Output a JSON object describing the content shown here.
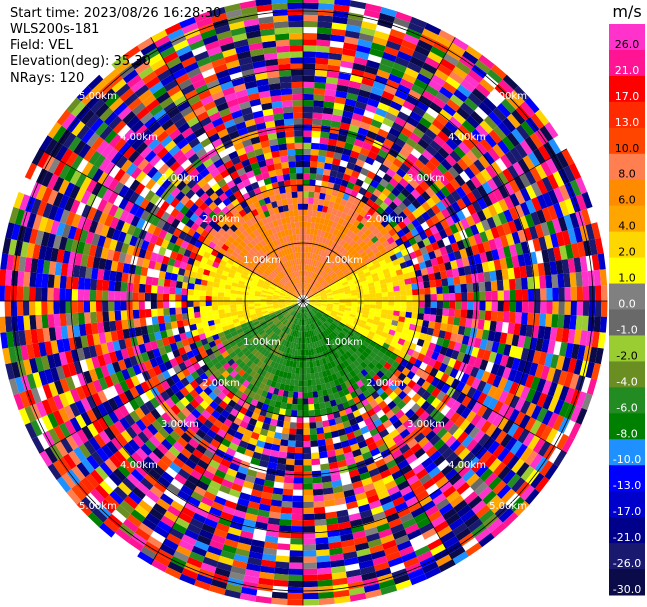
{
  "header": {
    "start_time": "Start time: 2023/08/26 16:28:30",
    "instrument": "WLS200s-181",
    "field": "Field: VEL",
    "elevation": "Elevation(deg): 35.30",
    "nrays": "NRays: 120"
  },
  "chart_data": {
    "type": "heatmap",
    "subtype": "polar-ppi",
    "field": "VEL",
    "units": "m/s",
    "n_rays": 120,
    "elevation_deg": 35.3,
    "range_rings_km": [
      1.0,
      2.0,
      3.0,
      4.0,
      5.0
    ],
    "range_ring_labels": [
      "1.00km",
      "2.00km",
      "3.00km",
      "4.00km",
      "5.00km"
    ],
    "max_range_km": 5.25,
    "azimuth_lines_deg": [
      0,
      30,
      60,
      90,
      120,
      150,
      180,
      210,
      240,
      270,
      300,
      330
    ],
    "clean_signal_range_km": 2.0,
    "near_field_pattern": [
      {
        "azimuth_from_deg": 300,
        "azimuth_to_deg": 60,
        "velocity_ms": 8.0
      },
      {
        "azimuth_from_deg": 60,
        "azimuth_to_deg": 120,
        "velocity_ms": 2.0
      },
      {
        "azimuth_from_deg": 120,
        "azimuth_to_deg": 200,
        "velocity_ms": -6.0
      },
      {
        "azimuth_from_deg": 200,
        "azimuth_to_deg": 250,
        "velocity_ms": -4.0
      },
      {
        "azimuth_from_deg": 250,
        "azimuth_to_deg": 300,
        "velocity_ms": 2.0
      }
    ],
    "colorbar": {
      "title": "m/s",
      "tick_labels": [
        "26.0",
        "21.0",
        "17.0",
        "13.0",
        "10.0",
        "8.0",
        "6.0",
        "4.0",
        "2.0",
        "1.0",
        "0.0",
        "-1.0",
        "-2.0",
        "-4.0",
        "-6.0",
        "-8.0",
        "-10.0",
        "-13.0",
        "-17.0",
        "-21.0",
        "-26.0",
        "-30.0"
      ],
      "boundaries": [
        30.0,
        26.0,
        21.0,
        17.0,
        13.0,
        10.0,
        8.0,
        6.0,
        4.0,
        2.0,
        1.0,
        0.0,
        -1.0,
        -2.0,
        -4.0,
        -6.0,
        -8.0,
        -10.0,
        -13.0,
        -17.0,
        -21.0,
        -26.0,
        -30.0
      ],
      "colors": [
        "#ff33cc",
        "#ff1493",
        "#ff0000",
        "#ff2a00",
        "#ff4500",
        "#ff7f50",
        "#ff8c00",
        "#ffa500",
        "#ffd700",
        "#ffff00",
        "#808080",
        "#696969",
        "#9acd32",
        "#6b8e23",
        "#228b22",
        "#008000",
        "#1e90ff",
        "#0000ff",
        "#0000cd",
        "#00008b",
        "#191970",
        "#0b0b4a"
      ]
    }
  }
}
